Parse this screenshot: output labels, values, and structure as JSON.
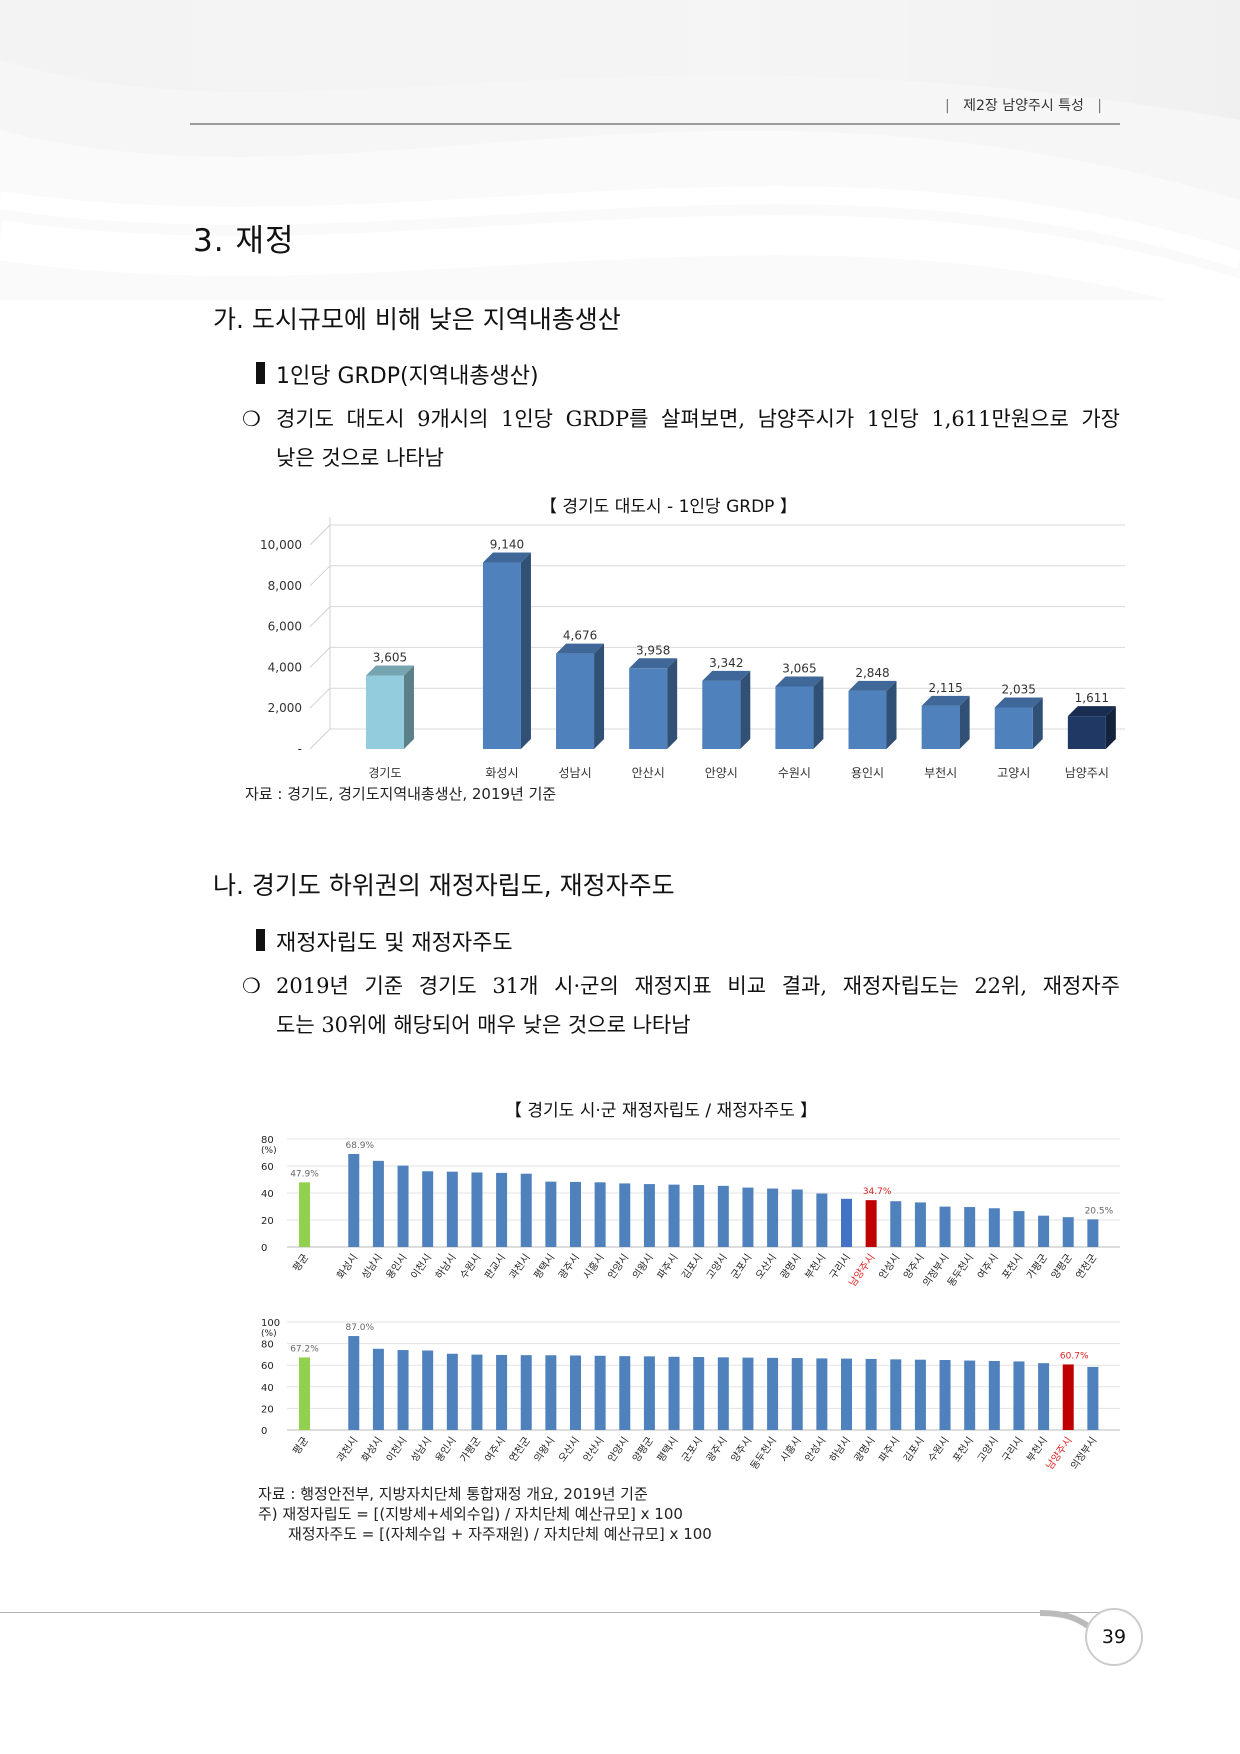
{
  "header": {
    "chapter": "제2장 남양주시 특성"
  },
  "section": {
    "title": "3. 재정"
  },
  "sub_a": {
    "title": "가. 도시규모에 비해 낮은 지역내총생산",
    "heading": "1인당 GRDP(지역내총생산)",
    "bullet": "❍",
    "para_line1": "경기도 대도시 9개시의 1인당 GRDP를 살펴보면, 남양주시가 1인당 1,611만원으로 가장",
    "para_line2": "낮은 것으로 나타남",
    "chart_title": "【 경기도 대도시 - 1인당 GRDP 】",
    "source": "자료 : 경기도, 경기도지역내총생산, 2019년 기준"
  },
  "sub_b": {
    "title": "나. 경기도 하위권의 재정자립도, 재정자주도",
    "heading": "재정자립도 및 재정자주도",
    "bullet": "❍",
    "para_line1": "2019년 기준 경기도 31개 시·군의 재정지표 비교 결과, 재정자립도는 22위, 재정자주",
    "para_line2": "도는 30위에 해당되어 매우 낮은 것으로 나타남",
    "chart_title": "【 경기도 시·군 재정자립도 / 재정자주도 】",
    "source": "자료 : 행정안전부, 지방자치단체 통합재정 개요, 2019년 기준",
    "note1": "주) 재정자립도 = [(지방세+세외수입) / 자치단체 예산규모] x 100",
    "note2": "재정자주도 = [(자체수입 + 자주재원) / 자치단체 예산규모] x 100"
  },
  "page_number": "39",
  "colors": {
    "bar_blue": "#4f81bd",
    "bar_light": "#93cddd",
    "bar_navy": "#1f3864",
    "bar_green": "#92d050",
    "bar_red": "#c00000",
    "bar_mid": "#4472c4",
    "red_text": "#e02020"
  },
  "chart_data": [
    {
      "type": "bar",
      "title": "【 경기도 대도시 - 1인당 GRDP 】",
      "categories": [
        "경기도",
        "화성시",
        "성남시",
        "안산시",
        "안양시",
        "수원시",
        "용인시",
        "부천시",
        "고양시",
        "남양주시"
      ],
      "values": [
        3605,
        9140,
        4676,
        3958,
        3342,
        3065,
        2848,
        2115,
        2035,
        1611
      ],
      "value_labels": [
        "3,605",
        "9,140",
        "4,676",
        "3,958",
        "3,342",
        "3,065",
        "2,848",
        "2,115",
        "2,035",
        "1,611"
      ],
      "y_ticks": [
        "-",
        "2,000",
        "4,000",
        "6,000",
        "8,000",
        "10,000"
      ],
      "ylim": [
        0,
        10000
      ],
      "grid": true,
      "style": "3d"
    },
    {
      "type": "bar",
      "series_label": "재정자립도",
      "y_unit": "(%)",
      "y_ticks": [
        "0",
        "20",
        "40",
        "60",
        "80"
      ],
      "ylim": [
        0,
        80
      ],
      "categories": [
        "평균",
        "화성시",
        "성남시",
        "용인시",
        "이천시",
        "하남시",
        "수원시",
        "판교시",
        "과천시",
        "평택시",
        "광주시",
        "시흥시",
        "안양시",
        "의왕시",
        "파주시",
        "김포시",
        "고양시",
        "군포시",
        "오산시",
        "광명시",
        "부천시",
        "구리시",
        "남양주시",
        "안성시",
        "양주시",
        "의정부시",
        "동두천시",
        "여주시",
        "포천시",
        "가평군",
        "양평군",
        "연천군"
      ],
      "values": [
        47.9,
        68.9,
        63.8,
        60.3,
        56.1,
        55.8,
        55.2,
        54.9,
        54.3,
        48.4,
        48.2,
        47.9,
        47.1,
        46.6,
        46.2,
        45.9,
        45.3,
        44.0,
        43.3,
        42.6,
        39.6,
        35.7,
        34.7,
        33.9,
        33.0,
        29.9,
        29.6,
        28.7,
        26.6,
        23.2,
        22.1,
        20.5
      ],
      "value_labels": {
        "0": "47.9%",
        "1": "68.9%",
        "22": "34.7%",
        "31": "20.5%"
      }
    },
    {
      "type": "bar",
      "series_label": "재정자주도",
      "y_unit": "(%)",
      "y_ticks": [
        "0",
        "20",
        "40",
        "60",
        "80",
        "100"
      ],
      "ylim": [
        0,
        100
      ],
      "categories": [
        "평균",
        "과천시",
        "화성시",
        "이천시",
        "성남시",
        "용인시",
        "가평군",
        "여주시",
        "연천군",
        "의왕시",
        "오산시",
        "안산시",
        "안양시",
        "양평군",
        "평택시",
        "군포시",
        "광주시",
        "양주시",
        "동두천시",
        "시흥시",
        "안성시",
        "하남시",
        "광명시",
        "파주시",
        "김포시",
        "수원시",
        "포천시",
        "고양시",
        "구리시",
        "부천시",
        "남양주시",
        "의정부시"
      ],
      "values": [
        67.2,
        87.0,
        75.2,
        74.0,
        73.6,
        70.6,
        69.8,
        69.5,
        69.3,
        69.2,
        69.0,
        68.7,
        68.4,
        68.2,
        67.8,
        67.6,
        67.3,
        67.0,
        66.8,
        66.6,
        66.3,
        66.1,
        65.8,
        65.4,
        65.1,
        64.8,
        64.3,
        63.9,
        63.5,
        61.9,
        60.7,
        58.4
      ],
      "value_labels": {
        "0": "67.2%",
        "1": "87.0%",
        "30": "60.7%"
      }
    }
  ]
}
